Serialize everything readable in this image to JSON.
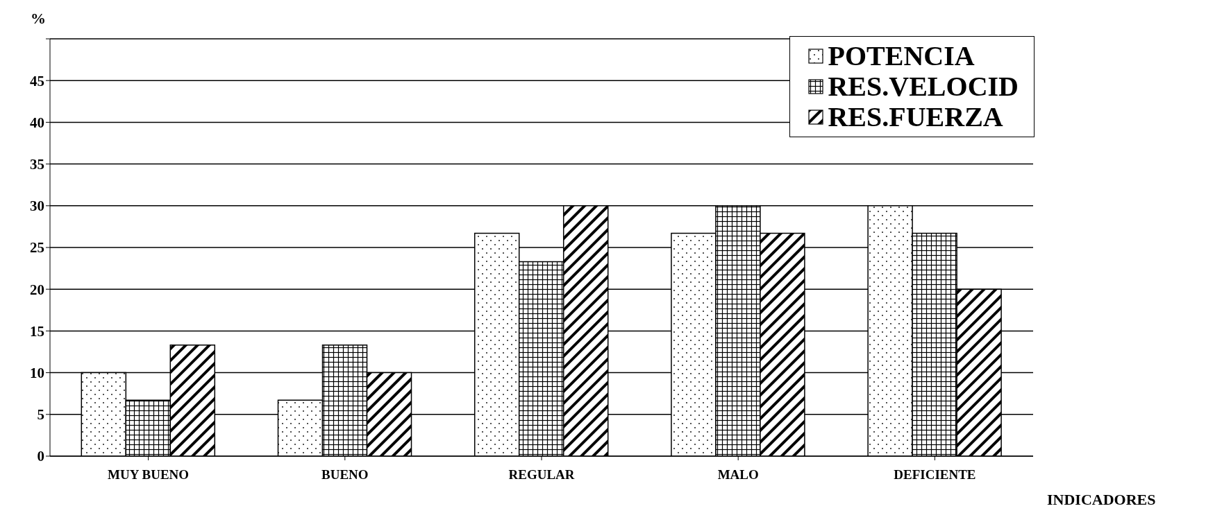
{
  "chart_data": {
    "type": "bar",
    "ylabel": "%",
    "xlabel": "INDICADORES",
    "categories": [
      "MUY BUENO",
      "BUENO",
      "REGULAR",
      "MALO",
      "DEFICIENTE"
    ],
    "series": [
      {
        "name": "POTENCIA",
        "color": "#000000",
        "values": [
          10,
          6.7,
          26.7,
          26.7,
          30
        ]
      },
      {
        "name": "RES.VELOCID",
        "color": "#000000",
        "values": [
          6.7,
          13.3,
          23.3,
          30,
          26.7
        ]
      },
      {
        "name": "RES.FUERZA",
        "color": "#000000",
        "values": [
          13.3,
          10,
          30,
          26.7,
          20
        ]
      }
    ],
    "ylim": [
      0,
      50
    ],
    "yticks": [
      0,
      5,
      10,
      15,
      20,
      25,
      30,
      35,
      40,
      45,
      {
        "value": 50,
        "label": null
      }
    ],
    "grid": "y",
    "legend": "top right"
  }
}
